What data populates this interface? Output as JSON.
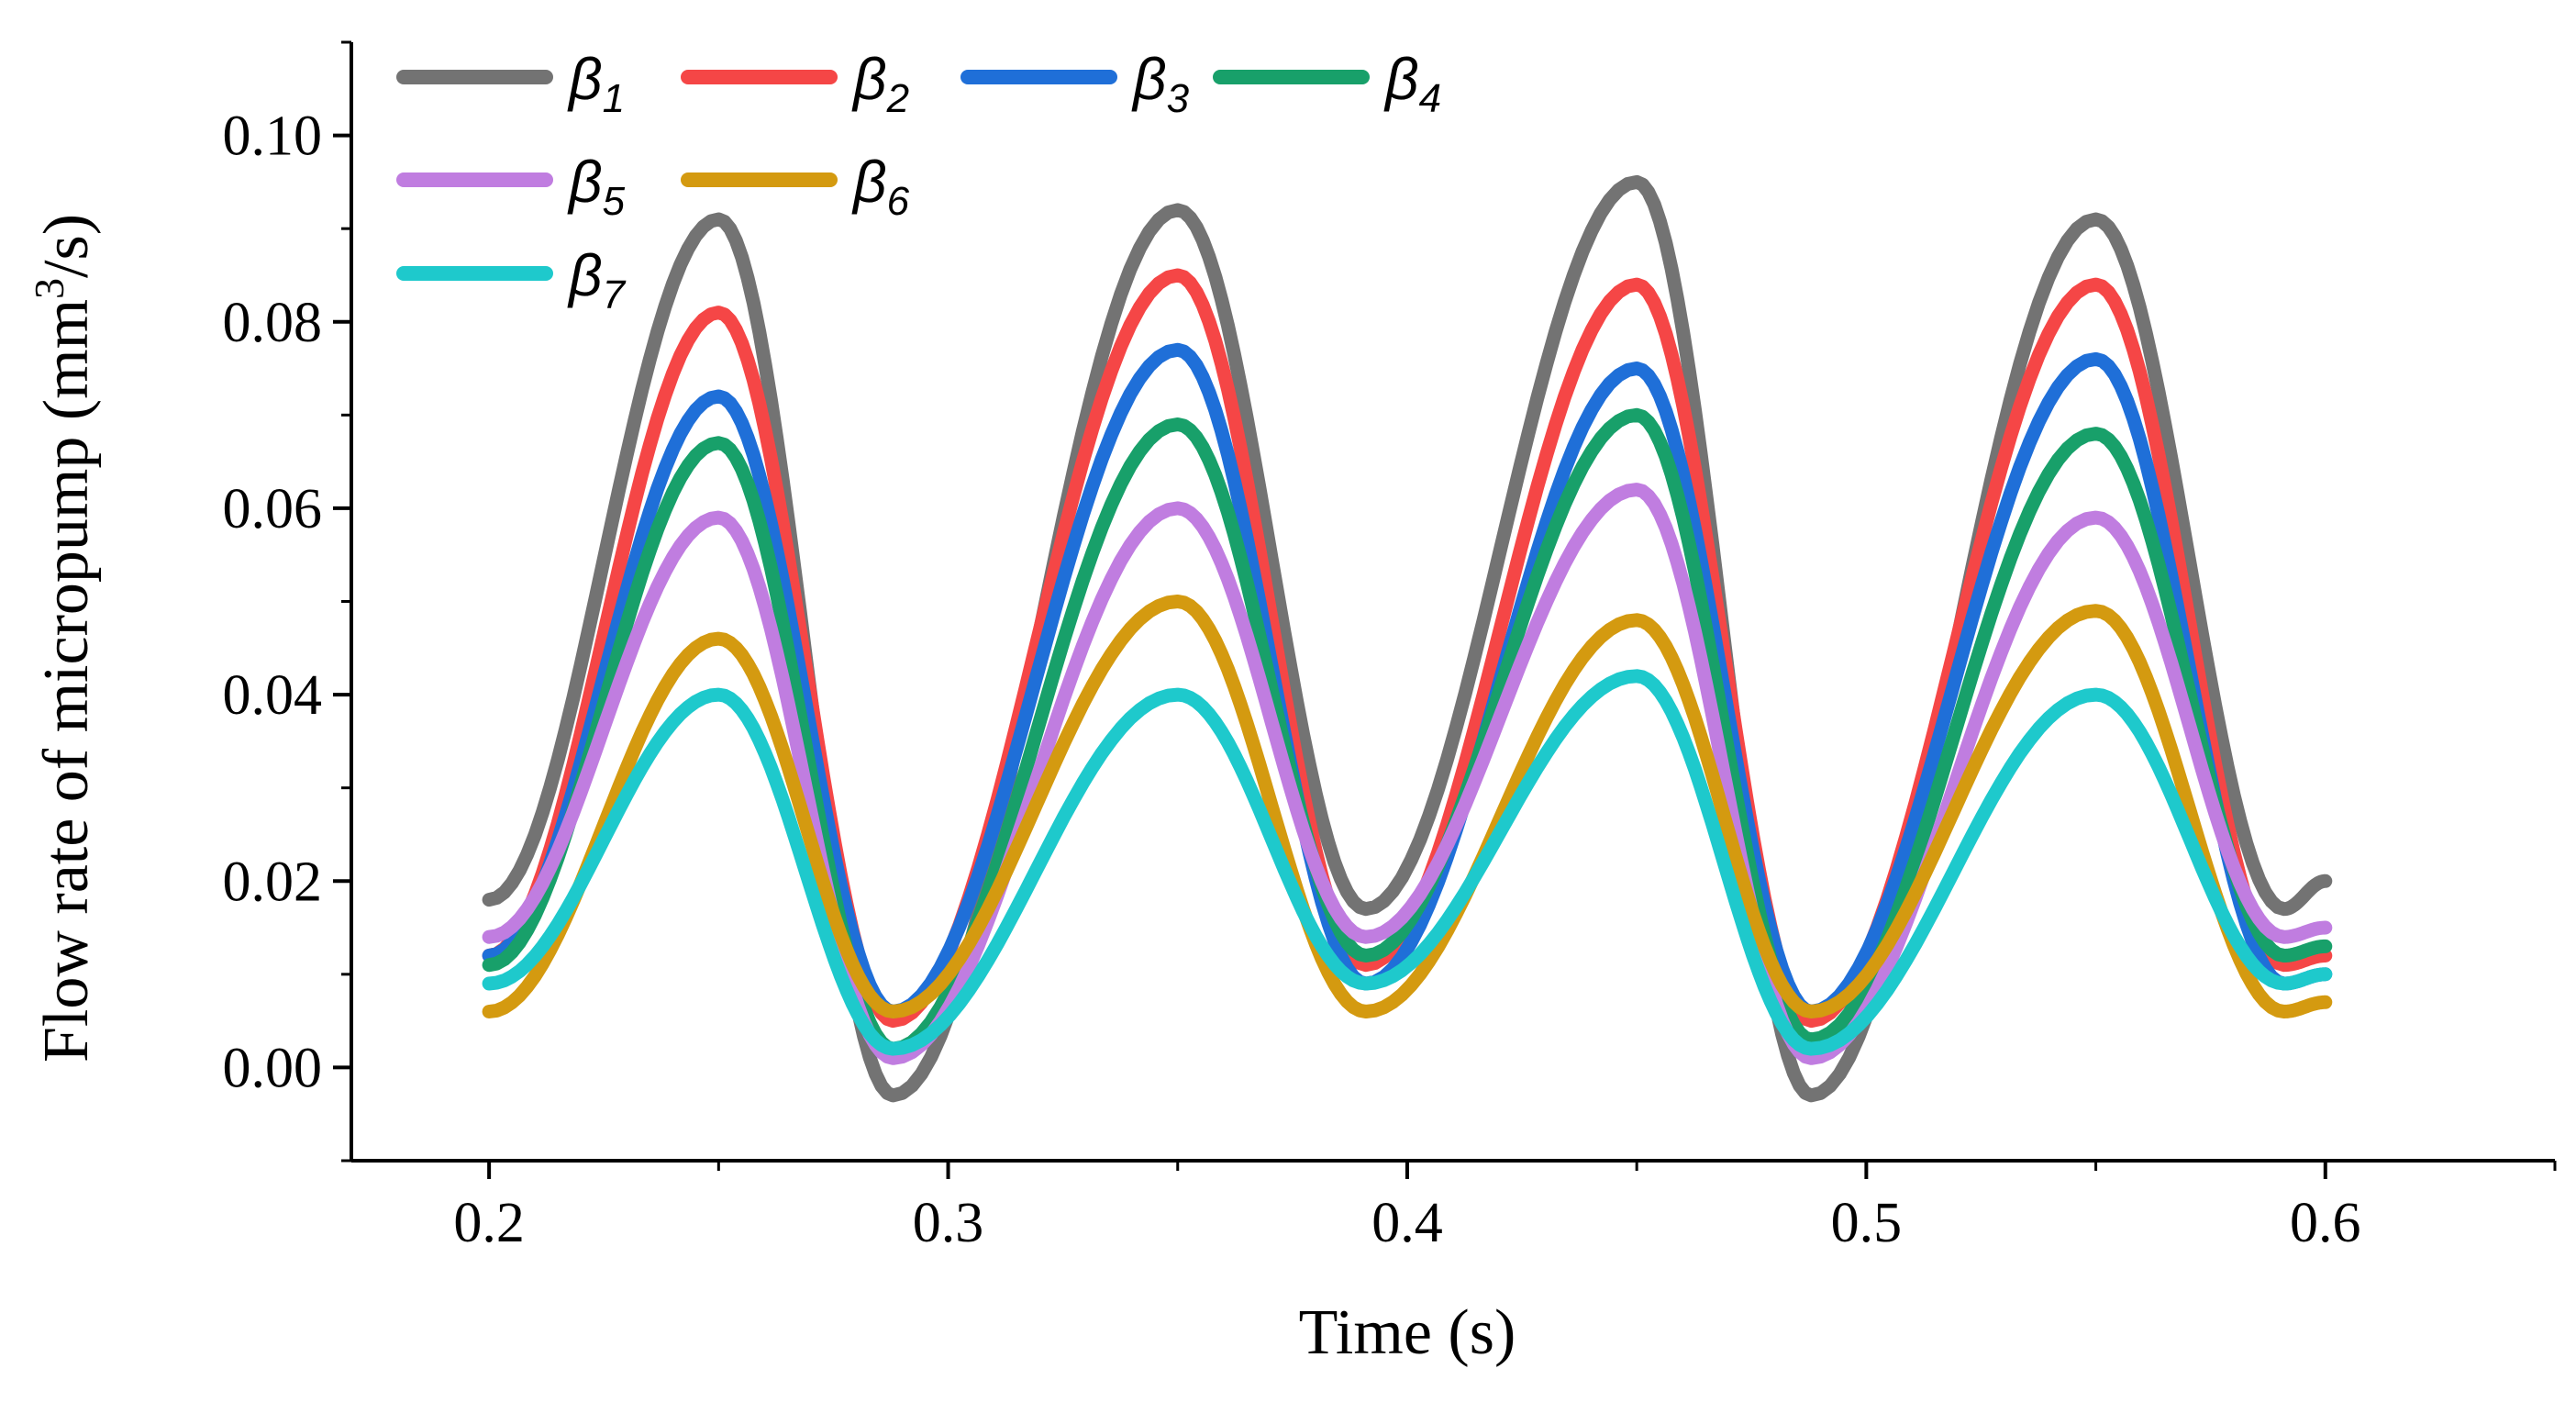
{
  "chart_data": {
    "type": "line",
    "title": "",
    "xlabel": "Time (s)",
    "ylabel": "Flow rate of micropump (mm³/s)",
    "ylabel_parts": {
      "before": "Flow rate of micropump (mm",
      "sup": "3",
      "after": "/s)"
    },
    "xlim": [
      0.17,
      0.65
    ],
    "ylim": [
      -0.01,
      0.11
    ],
    "xticks": [
      0.2,
      0.3,
      0.4,
      0.5,
      0.6
    ],
    "xtick_labels": [
      "0.2",
      "0.3",
      "0.4",
      "0.5",
      "0.6"
    ],
    "yticks": [
      0.0,
      0.02,
      0.04,
      0.06,
      0.08,
      0.1
    ],
    "ytick_labels": [
      "0.00",
      "0.02",
      "0.04",
      "0.06",
      "0.08",
      "0.10"
    ],
    "grid": false,
    "legend_position": "top-left",
    "x": [
      0.2,
      0.25,
      0.288,
      0.35,
      0.391,
      0.45,
      0.488,
      0.55,
      0.591,
      0.6
    ],
    "series": [
      {
        "name": "β",
        "sub": "1",
        "color": "#737373",
        "values": [
          0.018,
          0.091,
          -0.003,
          0.092,
          0.017,
          0.095,
          -0.003,
          0.091,
          0.017,
          0.02
        ]
      },
      {
        "name": "β",
        "sub": "2",
        "color": "#f54646",
        "values": [
          0.012,
          0.081,
          0.005,
          0.085,
          0.011,
          0.084,
          0.005,
          0.084,
          0.011,
          0.012
        ]
      },
      {
        "name": "β",
        "sub": "3",
        "color": "#1f6fd8",
        "values": [
          0.012,
          0.072,
          0.006,
          0.077,
          0.009,
          0.075,
          0.006,
          0.076,
          0.009,
          0.01
        ]
      },
      {
        "name": "β",
        "sub": "4",
        "color": "#18a06a",
        "values": [
          0.011,
          0.067,
          0.002,
          0.069,
          0.012,
          0.07,
          0.003,
          0.068,
          0.012,
          0.013
        ]
      },
      {
        "name": "β",
        "sub": "5",
        "color": "#c07de0",
        "values": [
          0.014,
          0.059,
          0.001,
          0.06,
          0.014,
          0.062,
          0.001,
          0.059,
          0.014,
          0.015
        ]
      },
      {
        "name": "β",
        "sub": "6",
        "color": "#d49a10",
        "values": [
          0.006,
          0.046,
          0.006,
          0.05,
          0.006,
          0.048,
          0.006,
          0.049,
          0.006,
          0.007
        ]
      },
      {
        "name": "β",
        "sub": "7",
        "color": "#1ec9cc",
        "values": [
          0.009,
          0.04,
          0.002,
          0.04,
          0.009,
          0.042,
          0.002,
          0.04,
          0.009,
          0.01
        ]
      }
    ]
  }
}
